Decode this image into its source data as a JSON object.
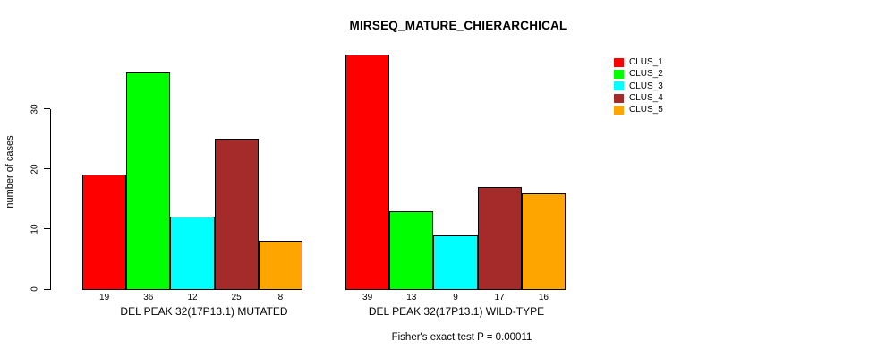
{
  "title": "MIRSEQ_MATURE_CHIERARCHICAL",
  "caption": "Fisher's exact test P = 0.00011",
  "chart_data": {
    "type": "bar",
    "title": "MIRSEQ_MATURE_CHIERARCHICAL",
    "ylabel": "number of cases",
    "xlabel": "",
    "ylim": [
      0,
      30
    ],
    "yticks": [
      0,
      10,
      20,
      30
    ],
    "grid": false,
    "legend_position": "top-right",
    "series_names": [
      "CLUS_1",
      "CLUS_2",
      "CLUS_3",
      "CLUS_4",
      "CLUS_5"
    ],
    "series_colors": [
      "#FF0000",
      "#00FF00",
      "#00FFFF",
      "#A52A2A",
      "#FFA500"
    ],
    "groups": [
      {
        "label": "DEL PEAK 32(17P13.1) MUTATED",
        "values": [
          19,
          36,
          12,
          25,
          8
        ],
        "bar_labels": [
          "19",
          "36",
          "12",
          "25",
          "8"
        ]
      },
      {
        "label": "DEL PEAK 32(17P13.1) WILD-TYPE",
        "values": [
          39,
          13,
          9,
          17,
          16
        ],
        "bar_labels": [
          "39",
          "13",
          "9",
          "17",
          "16"
        ]
      }
    ],
    "annotation": "Fisher's exact test P = 0.00011"
  },
  "legend": {
    "items": [
      {
        "label": "CLUS_1",
        "color": "#FF0000"
      },
      {
        "label": "CLUS_2",
        "color": "#00FF00"
      },
      {
        "label": "CLUS_3",
        "color": "#00FFFF"
      },
      {
        "label": "CLUS_4",
        "color": "#A52A2A"
      },
      {
        "label": "CLUS_5",
        "color": "#FFA500"
      }
    ]
  }
}
